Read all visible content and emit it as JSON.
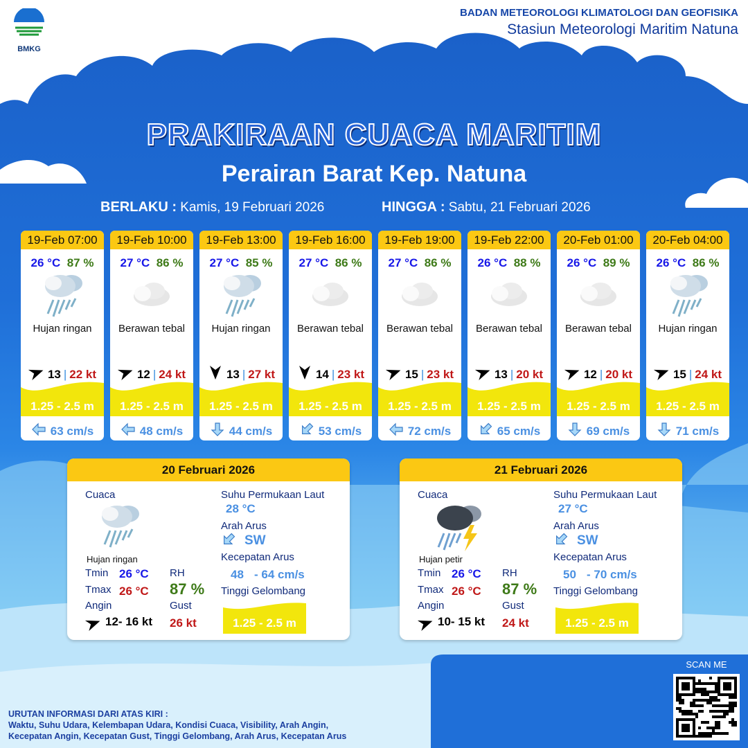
{
  "header": {
    "logo_text": "BMKG",
    "agency": "BADAN METEOROLOGI KLIMATOLOGI DAN GEOFISIKA",
    "station": "Stasiun Meteorologi Maritim Natuna"
  },
  "title": "PRAKIRAAN CUACA MARITIM",
  "subtitle": "Perairan Barat Kep. Natuna",
  "validity": {
    "from_label": "BERLAKU :",
    "from": "Kamis, 19 Februari 2026",
    "to_label": "HINGGA :",
    "to": "Sabtu, 21 Februari 2026"
  },
  "colors": {
    "accent": "#fbc813",
    "wave": "#f2e60c",
    "temp": "#1818e8",
    "rh": "#3e7a18",
    "gust": "#c01818",
    "current": "#4a90e2"
  },
  "forecasts": [
    {
      "time": "19-Feb 07:00",
      "temp": "26 °C",
      "rh": "87 %",
      "icon": "light-rain-icon",
      "weather": "Hujan ringan",
      "wind_dir": "ne",
      "wind": "13",
      "gust": "22 kt",
      "wave": "1.25 - 2.5 m",
      "current_dir": "left",
      "current": "63 cm/s"
    },
    {
      "time": "19-Feb 10:00",
      "temp": "27 °C",
      "rh": "86 %",
      "icon": "overcast-icon",
      "weather": "Berawan tebal",
      "wind_dir": "ne",
      "wind": "12",
      "gust": "24 kt",
      "wave": "1.25 - 2.5 m",
      "current_dir": "left",
      "current": "48 cm/s"
    },
    {
      "time": "19-Feb 13:00",
      "temp": "27 °C",
      "rh": "85 %",
      "icon": "light-rain-icon",
      "weather": "Hujan ringan",
      "wind_dir": "s",
      "wind": "13",
      "gust": "27 kt",
      "wave": "1.25 - 2.5 m",
      "current_dir": "down",
      "current": "44 cm/s"
    },
    {
      "time": "19-Feb 16:00",
      "temp": "27 °C",
      "rh": "86 %",
      "icon": "overcast-icon",
      "weather": "Berawan tebal",
      "wind_dir": "s",
      "wind": "14",
      "gust": "23 kt",
      "wave": "1.25 - 2.5 m",
      "current_dir": "sw",
      "current": "53 cm/s"
    },
    {
      "time": "19-Feb 19:00",
      "temp": "27 °C",
      "rh": "86 %",
      "icon": "overcast-icon",
      "weather": "Berawan tebal",
      "wind_dir": "ne",
      "wind": "15",
      "gust": "23 kt",
      "wave": "1.25 - 2.5 m",
      "current_dir": "left",
      "current": "72 cm/s"
    },
    {
      "time": "19-Feb 22:00",
      "temp": "26 °C",
      "rh": "88 %",
      "icon": "overcast-icon",
      "weather": "Berawan tebal",
      "wind_dir": "ne",
      "wind": "13",
      "gust": "20 kt",
      "wave": "1.25 - 2.5 m",
      "current_dir": "sw",
      "current": "65 cm/s"
    },
    {
      "time": "20-Feb 01:00",
      "temp": "26 °C",
      "rh": "89 %",
      "icon": "overcast-icon",
      "weather": "Berawan tebal",
      "wind_dir": "ne",
      "wind": "12",
      "gust": "20 kt",
      "wave": "1.25 - 2.5 m",
      "current_dir": "down",
      "current": "69 cm/s"
    },
    {
      "time": "20-Feb 04:00",
      "temp": "26 °C",
      "rh": "86 %",
      "icon": "light-rain-icon",
      "weather": "Hujan ringan",
      "wind_dir": "ne",
      "wind": "15",
      "gust": "24 kt",
      "wave": "1.25 - 2.5 m",
      "current_dir": "down",
      "current": "71 cm/s"
    }
  ],
  "labels": {
    "weather": "Cuaca",
    "sst": "Suhu Permukaan Laut",
    "current_dir": "Arah Arus",
    "current_speed": "Kecepatan Arus",
    "wave": "Tinggi Gelombang",
    "tmin": "Tmin",
    "tmax": "Tmax",
    "rh": "RH",
    "wind": "Angin",
    "gust": "Gust"
  },
  "daily": [
    {
      "date": "20 Februari 2026",
      "icon": "light-rain-icon",
      "weather": "Hujan ringan",
      "tmin": "26 °C",
      "tmax": "26 °C",
      "rh": "87 %",
      "wind": "12- 16 kt",
      "gust": "26 kt",
      "sst": "28 °C",
      "current_dir": "SW",
      "current_min": "48",
      "current_max": "- 64 cm/s",
      "wave": "1.25 - 2.5 m"
    },
    {
      "date": "21 Februari 2026",
      "icon": "thunderstorm-icon",
      "weather": "Hujan petir",
      "tmin": "26 °C",
      "tmax": "26 °C",
      "rh": "87 %",
      "wind": "10- 15 kt",
      "gust": "24 kt",
      "sst": "27 °C",
      "current_dir": "SW",
      "current_min": "50",
      "current_max": "- 70 cm/s",
      "wave": "1.25 - 2.5 m"
    }
  ],
  "footer": {
    "title": "URUTAN INFORMASI DARI ATAS KIRI :",
    "line1": "Waktu, Suhu Udara, Kelembapan Udara, Kondisi Cuaca, Visibility, Arah Angin,",
    "line2": "Kecepatan Angin, Kecepatan Gust, Tinggi Gelombang, Arah Arus, Kecepatan Arus",
    "scan": "SCAN ME"
  }
}
